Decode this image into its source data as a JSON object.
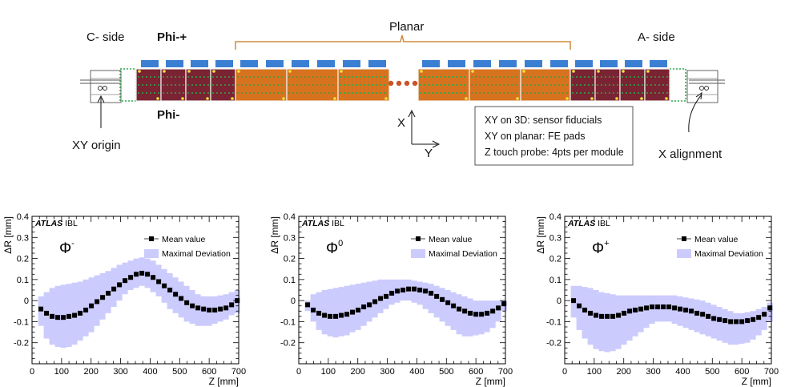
{
  "diagram": {
    "c_side": "C- side",
    "a_side": "A- side",
    "phi_plus": "Phi-+",
    "phi_minus": "Phi-",
    "planar": "Planar",
    "xy_origin": "XY origin",
    "x_alignment": "X alignment",
    "axis_x": "X",
    "axis_y": "Y",
    "legend_lines": [
      "XY on 3D: sensor fiducials",
      "XY on planar: FE pads",
      "Z touch probe: 4pts per module"
    ],
    "colors": {
      "module_3d": "#7a2433",
      "module_planar": "#d7731e",
      "fe_pad": "#3b7fd3",
      "fiducial": "#2aa84a",
      "marker": "#f2e23a",
      "bracket": "#d08a3a",
      "gap_dot": "#c8552a"
    }
  },
  "chart_data": [
    {
      "type": "line",
      "phi_symbol": "Φ",
      "phi_superscript": "-",
      "brand": "ATLAS",
      "brand_suffix": "IBL",
      "xlabel": "Z [mm]",
      "ylabel": "ΔR [mm]",
      "xlim": [
        0,
        700
      ],
      "ylim": [
        -0.3,
        0.4
      ],
      "xticks": [
        0,
        100,
        200,
        300,
        400,
        500,
        600,
        700
      ],
      "yticks": [
        -0.2,
        -0.1,
        0,
        0.1,
        0.2,
        0.3,
        0.4
      ],
      "series": [
        {
          "name": "Mean value",
          "x": [
            30,
            49,
            68,
            87,
            106,
            125,
            144,
            163,
            182,
            201,
            220,
            239,
            258,
            277,
            296,
            315,
            334,
            353,
            372,
            391,
            410,
            429,
            448,
            467,
            486,
            505,
            524,
            543,
            562,
            581,
            600,
            619,
            638,
            657,
            676,
            695
          ],
          "values": [
            -0.04,
            -0.06,
            -0.075,
            -0.08,
            -0.08,
            -0.075,
            -0.07,
            -0.06,
            -0.045,
            -0.025,
            -0.005,
            0.015,
            0.035,
            0.055,
            0.075,
            0.095,
            0.11,
            0.125,
            0.13,
            0.125,
            0.11,
            0.09,
            0.07,
            0.05,
            0.03,
            0.01,
            -0.01,
            -0.025,
            -0.035,
            -0.04,
            -0.045,
            -0.045,
            -0.04,
            -0.035,
            -0.02,
            0
          ]
        },
        {
          "name": "Maximal Deviation",
          "values_low": [
            -0.12,
            -0.18,
            -0.21,
            -0.22,
            -0.225,
            -0.22,
            -0.21,
            -0.19,
            -0.17,
            -0.15,
            -0.12,
            -0.09,
            -0.06,
            -0.03,
            0.0,
            0.03,
            0.05,
            0.06,
            0.07,
            0.06,
            0.04,
            0.02,
            -0.01,
            -0.04,
            -0.06,
            -0.08,
            -0.1,
            -0.11,
            -0.12,
            -0.12,
            -0.12,
            -0.11,
            -0.1,
            -0.09,
            -0.07,
            -0.06
          ],
          "values_high": [
            0.02,
            0.04,
            0.06,
            0.07,
            0.075,
            0.08,
            0.085,
            0.09,
            0.1,
            0.11,
            0.12,
            0.13,
            0.14,
            0.155,
            0.17,
            0.18,
            0.19,
            0.2,
            0.205,
            0.2,
            0.19,
            0.17,
            0.15,
            0.13,
            0.11,
            0.09,
            0.07,
            0.05,
            0.03,
            0.02,
            0.02,
            0.02,
            0.025,
            0.03,
            0.04,
            0.05
          ]
        }
      ]
    },
    {
      "type": "line",
      "phi_symbol": "Φ",
      "phi_superscript": "0",
      "brand": "ATLAS",
      "brand_suffix": "IBL",
      "xlabel": "Z [mm]",
      "ylabel": "ΔR [mm]",
      "xlim": [
        0,
        700
      ],
      "ylim": [
        -0.3,
        0.4
      ],
      "xticks": [
        0,
        100,
        200,
        300,
        400,
        500,
        600,
        700
      ],
      "yticks": [
        -0.2,
        -0.1,
        0,
        0.1,
        0.2,
        0.3,
        0.4
      ],
      "series": [
        {
          "name": "Mean value",
          "x": [
            30,
            49,
            68,
            87,
            106,
            125,
            144,
            163,
            182,
            201,
            220,
            239,
            258,
            277,
            296,
            315,
            334,
            353,
            372,
            391,
            410,
            429,
            448,
            467,
            486,
            505,
            524,
            543,
            562,
            581,
            600,
            619,
            638,
            657,
            676,
            695
          ],
          "values": [
            -0.02,
            -0.045,
            -0.06,
            -0.07,
            -0.075,
            -0.075,
            -0.07,
            -0.065,
            -0.055,
            -0.045,
            -0.03,
            -0.02,
            -0.005,
            0.01,
            0.02,
            0.035,
            0.045,
            0.05,
            0.055,
            0.055,
            0.05,
            0.045,
            0.035,
            0.02,
            0.005,
            -0.01,
            -0.025,
            -0.04,
            -0.05,
            -0.06,
            -0.065,
            -0.065,
            -0.06,
            -0.05,
            -0.035,
            -0.015
          ]
        },
        {
          "name": "Maximal Deviation",
          "values_low": [
            -0.05,
            -0.1,
            -0.14,
            -0.16,
            -0.17,
            -0.175,
            -0.17,
            -0.165,
            -0.15,
            -0.14,
            -0.12,
            -0.1,
            -0.08,
            -0.06,
            -0.04,
            -0.02,
            -0.01,
            0.0,
            0.0,
            -0.01,
            -0.02,
            -0.04,
            -0.06,
            -0.08,
            -0.1,
            -0.12,
            -0.14,
            -0.16,
            -0.17,
            -0.17,
            -0.165,
            -0.16,
            -0.15,
            -0.13,
            -0.1,
            -0.05
          ],
          "values_high": [
            0.0,
            0.03,
            0.04,
            0.05,
            0.055,
            0.06,
            0.065,
            0.07,
            0.075,
            0.08,
            0.085,
            0.09,
            0.095,
            0.1,
            0.1,
            0.1,
            0.1,
            0.1,
            0.1,
            0.095,
            0.09,
            0.085,
            0.08,
            0.07,
            0.06,
            0.05,
            0.04,
            0.03,
            0.02,
            0.01,
            0.0,
            0.0,
            0.0,
            0.0,
            0.0,
            0.0
          ]
        }
      ]
    },
    {
      "type": "line",
      "phi_symbol": "Φ",
      "phi_superscript": "+",
      "brand": "ATLAS",
      "brand_suffix": "IBL",
      "xlabel": "Z [mm]",
      "ylabel": "ΔR [mm]",
      "xlim": [
        0,
        700
      ],
      "ylim": [
        -0.3,
        0.4
      ],
      "xticks": [
        0,
        100,
        200,
        300,
        400,
        500,
        600,
        700
      ],
      "yticks": [
        -0.2,
        -0.1,
        0,
        0.1,
        0.2,
        0.3,
        0.4
      ],
      "series": [
        {
          "name": "Mean value",
          "x": [
            30,
            49,
            68,
            87,
            106,
            125,
            144,
            163,
            182,
            201,
            220,
            239,
            258,
            277,
            296,
            315,
            334,
            353,
            372,
            391,
            410,
            429,
            448,
            467,
            486,
            505,
            524,
            543,
            562,
            581,
            600,
            619,
            638,
            657,
            676,
            695
          ],
          "values": [
            0.0,
            -0.025,
            -0.045,
            -0.06,
            -0.07,
            -0.075,
            -0.075,
            -0.075,
            -0.07,
            -0.06,
            -0.05,
            -0.045,
            -0.04,
            -0.035,
            -0.03,
            -0.03,
            -0.03,
            -0.03,
            -0.035,
            -0.04,
            -0.045,
            -0.05,
            -0.06,
            -0.065,
            -0.075,
            -0.085,
            -0.09,
            -0.095,
            -0.1,
            -0.1,
            -0.1,
            -0.095,
            -0.09,
            -0.08,
            -0.065,
            -0.035
          ]
        },
        {
          "name": "Maximal Deviation",
          "values_low": [
            -0.08,
            -0.14,
            -0.18,
            -0.21,
            -0.23,
            -0.24,
            -0.245,
            -0.24,
            -0.23,
            -0.21,
            -0.19,
            -0.17,
            -0.15,
            -0.13,
            -0.11,
            -0.1,
            -0.1,
            -0.1,
            -0.11,
            -0.12,
            -0.13,
            -0.14,
            -0.15,
            -0.16,
            -0.17,
            -0.18,
            -0.19,
            -0.2,
            -0.21,
            -0.21,
            -0.205,
            -0.2,
            -0.185,
            -0.165,
            -0.14,
            -0.1
          ],
          "values_high": [
            0.07,
            0.07,
            0.065,
            0.06,
            0.05,
            0.04,
            0.035,
            0.03,
            0.025,
            0.025,
            0.025,
            0.025,
            0.025,
            0.025,
            0.025,
            0.025,
            0.025,
            0.025,
            0.025,
            0.02,
            0.015,
            0.01,
            0.005,
            0.0,
            -0.01,
            -0.02,
            -0.03,
            -0.04,
            -0.05,
            -0.06,
            -0.06,
            -0.055,
            -0.05,
            -0.04,
            -0.03,
            -0.01
          ]
        }
      ]
    }
  ]
}
